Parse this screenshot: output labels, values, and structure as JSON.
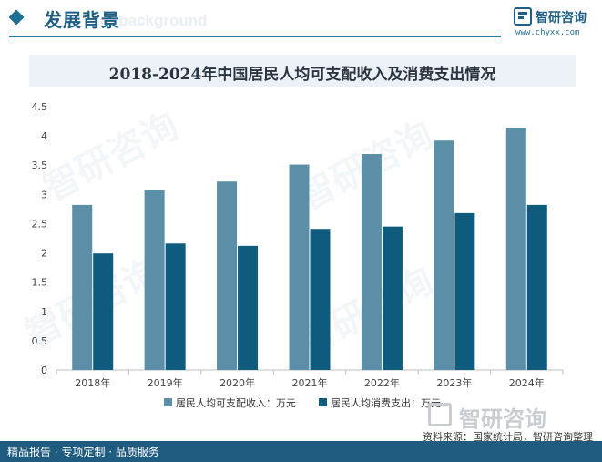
{
  "header": {
    "title": "发展背景",
    "title_bg": "ent background"
  },
  "brand": {
    "name": "智研咨询",
    "url": "www.chyxx.com"
  },
  "watermark_text": "智研咨询",
  "chart_data": {
    "type": "bar",
    "title": "2018-2024年中国居民人均可支配收入及消费支出情况",
    "categories": [
      "2018年",
      "2019年",
      "2020年",
      "2021年",
      "2022年",
      "2023年",
      "2024年"
    ],
    "series": [
      {
        "name": "居民人均可支配收入：万元",
        "color": "#5b8fa8",
        "values": [
          2.82,
          3.07,
          3.22,
          3.51,
          3.69,
          3.92,
          4.13
        ]
      },
      {
        "name": "居民人均消费支出：万元",
        "color": "#0f5b7e",
        "values": [
          1.99,
          2.16,
          2.12,
          2.41,
          2.45,
          2.68,
          2.82
        ]
      }
    ],
    "yticks": [
      "0",
      "0.5",
      "1",
      "1.5",
      "2",
      "2.5",
      "3",
      "3.5",
      "4",
      "4.5"
    ],
    "ylim": [
      0,
      4.5
    ],
    "grid": false,
    "legend": "bottom"
  },
  "source": "资料来源：国家统计局，智研咨询整理",
  "footer": {
    "text": "精品报告 · 专项定制 · 品质服务"
  }
}
